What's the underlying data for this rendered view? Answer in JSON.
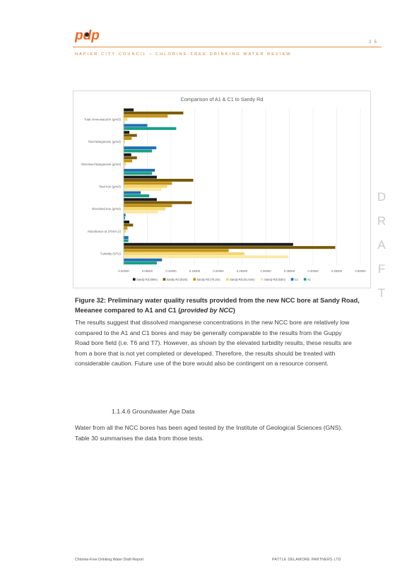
{
  "header": {
    "logo_text": "pdp",
    "page_number": "2 5",
    "running_head": "NAPIER CITY COUNCIL – CHLORINE-FREE DRINKING WATER REVIEW"
  },
  "colors": {
    "accent": "#e8913a",
    "logo_orange": "#f26522",
    "logo_dark": "#2b2b2b"
  },
  "chart_data": {
    "type": "bar",
    "orientation": "horizontal",
    "title": "Comparison of A1 & C1 to Sandy Rd",
    "categories": [
      "Total Ammoniacal-N (g/m3)",
      "Total Manganese (g/m3)",
      "Dissolved Manganese (g/m3)",
      "Total Iron (g/m3)",
      "Dissolved Iron (g/m3)",
      "Absorbance at 270nm (/)",
      "Turbidity (NTU)"
    ],
    "series": [
      {
        "name": "Sandy Rd (90m)",
        "color": "#1a1a1a",
        "values": [
          0.021,
          0.012,
          0.016,
          0.07,
          0.07,
          0.012,
          0.358
        ]
      },
      {
        "name": "Sandy Rd (82m)",
        "color": "#7a5a06",
        "values": [
          0.126,
          0.028,
          0.028,
          0.147,
          0.144,
          0.02,
          0.447
        ]
      },
      {
        "name": "Sandy Rd (76.2m)",
        "color": "#c4930f",
        "values": [
          0.093,
          0.017,
          0.018,
          0.102,
          0.102,
          0.008,
          0.222
        ]
      },
      {
        "name": "Sandy Rd (61.54m)",
        "color": "#f5d76e",
        "values": [
          0.008,
          0.003,
          0.005,
          0.092,
          0.088,
          0.005,
          0.255
        ]
      },
      {
        "name": "Sandy Rd (53m)",
        "color": "#fbe9a8",
        "values": [
          0.003,
          0.002,
          0.003,
          0.08,
          0.073,
          0.003,
          0.348
        ]
      },
      {
        "name": "C1",
        "color": "#1f6fb5",
        "values": [
          0.05,
          0.069,
          0.066,
          0.036,
          0.004,
          0.01,
          0.081
        ]
      },
      {
        "name": "A1",
        "color": "#16a085",
        "values": [
          0.111,
          0.06,
          0.06,
          0.054,
          0.003,
          0.01,
          0.07
        ]
      }
    ],
    "xlim": [
      0,
      0.5
    ],
    "xticks": [
      "0.00000",
      "0.05000",
      "0.10000",
      "0.15000",
      "0.20000",
      "0.25000",
      "0.30000",
      "0.35000",
      "0.40000",
      "0.45000",
      "0.50000"
    ],
    "grid": true,
    "legend_placement": "bottom"
  },
  "draft_letters": [
    "D",
    "R",
    "A",
    "F",
    "T"
  ],
  "caption_text": "Figure 32: Preliminary water quality results provided from the new NCC bore at Sandy Road, Meeanee compared to A1 and C1 (",
  "caption_italic": "provided by NCC",
  "caption_close": ")",
  "paragraph1": "The results suggest that dissolved manganese concentrations in the new NCC bore are relatively low compared to the A1 and C1 bores and may be generally comparable to the results from the Guppy Road bore field (i.e. T6 and T7). However, as shown by the elevated turbidity results, these results are from a bore that is not yet completed or developed. Therefore, the results should be treated with considerable caution. Future use of the bore would also be contingent on a resource consent.",
  "section_heading": "1.1.4.6  Groundwater Age Data",
  "paragraph2": "Water from all the NCC bores has been aged tested by the Institute of Geological Sciences (GNS). Table 30 summarises the data from those tests.",
  "footer": {
    "left": "Chlorine-Free Drinking Water Draft Report",
    "right": "PATTLE DELAMORE PARTNERS LTD"
  }
}
